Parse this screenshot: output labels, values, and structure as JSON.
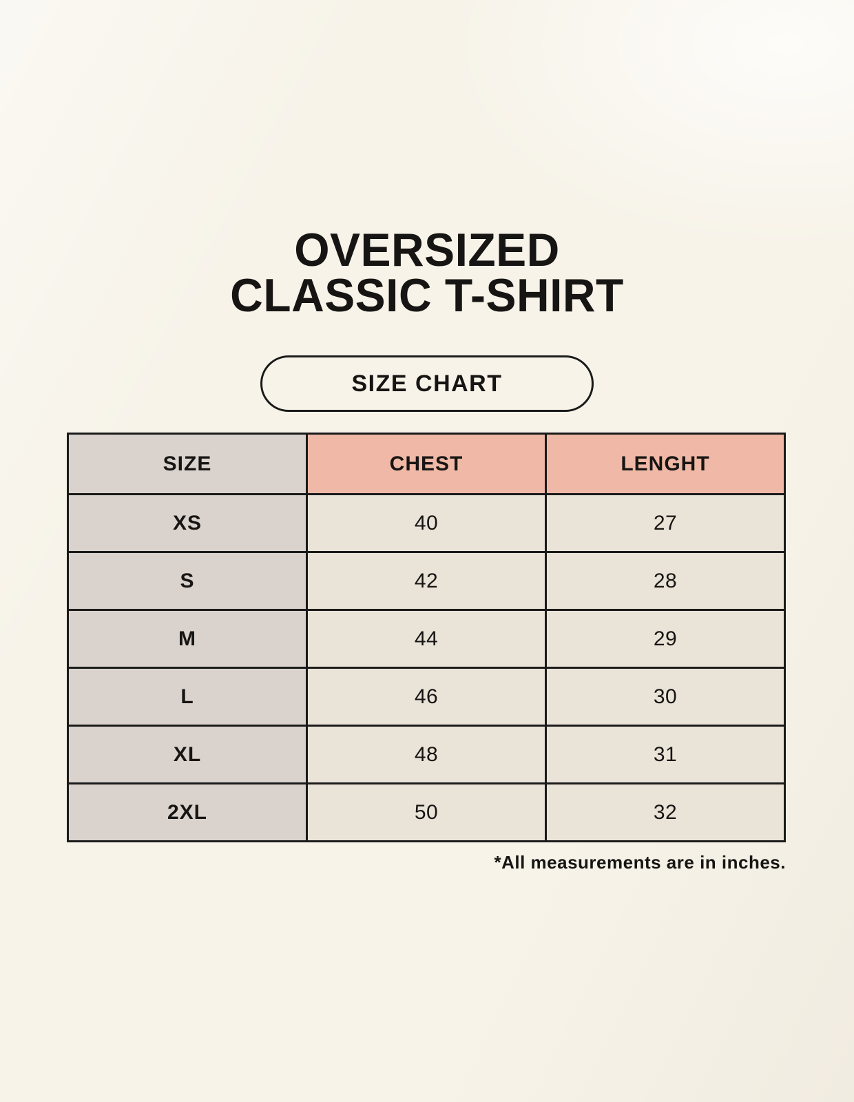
{
  "header": {
    "title_line1": "OVERSIZED",
    "title_line2": "CLASSIC T-SHIRT",
    "badge_label": "SIZE CHART"
  },
  "chart_data": {
    "type": "table",
    "title": "OVERSIZED CLASSIC T-SHIRT",
    "columns": [
      "SIZE",
      "CHEST",
      "LENGHT"
    ],
    "rows": [
      {
        "size": "XS",
        "chest": "40",
        "lenght": "27"
      },
      {
        "size": "S",
        "chest": "42",
        "lenght": "28"
      },
      {
        "size": "M",
        "chest": "44",
        "lenght": "29"
      },
      {
        "size": "L",
        "chest": "46",
        "lenght": "30"
      },
      {
        "size": "XL",
        "chest": "48",
        "lenght": "31"
      },
      {
        "size": "2XL",
        "chest": "50",
        "lenght": "32"
      }
    ],
    "annotation": "*All measurements are in inches."
  },
  "colors": {
    "page_bg": "#f7f3e9",
    "accent_header_bg": "#f0b8a6",
    "size_column_bg": "#dad3cd",
    "cell_bg": "#eae3d8",
    "table_border": "#1a1a1a",
    "text": "#171513"
  }
}
